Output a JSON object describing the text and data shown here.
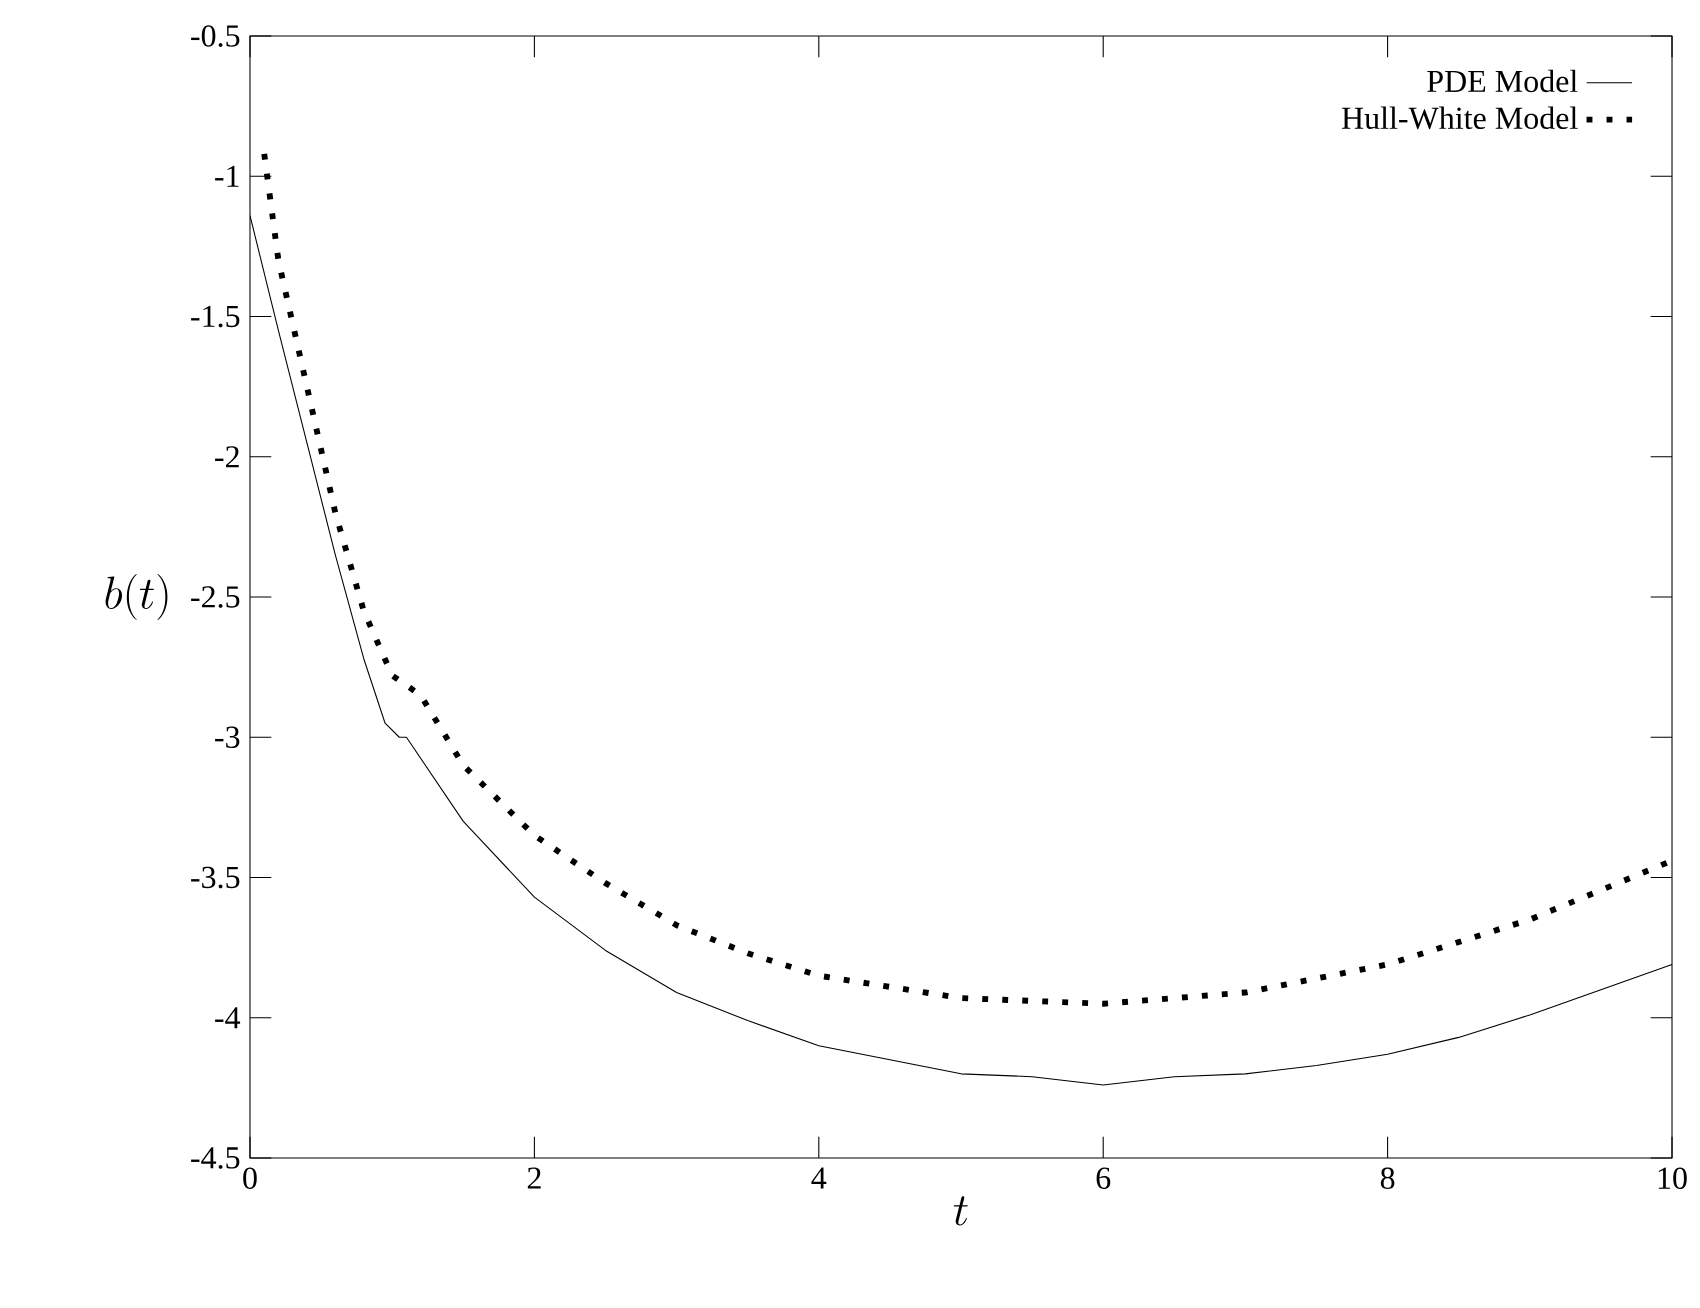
{
  "chart_data": {
    "type": "line",
    "xlabel": "t",
    "ylabel": "b(t)",
    "xlim": [
      0,
      10
    ],
    "ylim": [
      -4.5,
      -0.5
    ],
    "xticks": [
      0,
      2,
      4,
      6,
      8,
      10
    ],
    "yticks": [
      -4.5,
      -4,
      -3.5,
      -3,
      -2.5,
      -2,
      -1.5,
      -1,
      -0.5
    ],
    "legend": "top right",
    "grid": false,
    "marker": "none",
    "series": [
      {
        "name": "PDE Model",
        "color": "#000000",
        "line_style": "solid",
        "x": [
          0,
          0.2,
          0.4,
          0.6,
          0.8,
          0.95,
          1.05,
          1.1,
          1.5,
          2,
          2.5,
          3,
          3.5,
          4,
          4.5,
          5,
          5.5,
          6,
          6.5,
          7,
          7.5,
          8,
          8.5,
          9,
          9.5,
          10
        ],
        "values": [
          -1.14,
          -1.55,
          -1.95,
          -2.35,
          -2.72,
          -2.95,
          -3.0,
          -3.0,
          -3.3,
          -3.57,
          -3.76,
          -3.91,
          -4.01,
          -4.1,
          -4.15,
          -4.2,
          -4.21,
          -4.24,
          -4.21,
          -4.2,
          -4.17,
          -4.13,
          -4.07,
          -3.99,
          -3.9,
          -3.81
        ]
      },
      {
        "name": "Hull-White Model",
        "color": "#000000",
        "line_style": "dotted",
        "x": [
          0.1,
          0.2,
          0.4,
          0.6,
          0.8,
          1,
          1.2,
          1.5,
          2,
          2.5,
          3,
          3.5,
          4,
          5,
          6,
          7,
          8,
          9,
          10
        ],
        "values": [
          -0.92,
          -1.3,
          -1.75,
          -2.2,
          -2.55,
          -2.78,
          -2.85,
          -3.1,
          -3.35,
          -3.52,
          -3.67,
          -3.77,
          -3.85,
          -3.93,
          -3.95,
          -3.91,
          -3.81,
          -3.65,
          -3.44
        ]
      }
    ]
  }
}
